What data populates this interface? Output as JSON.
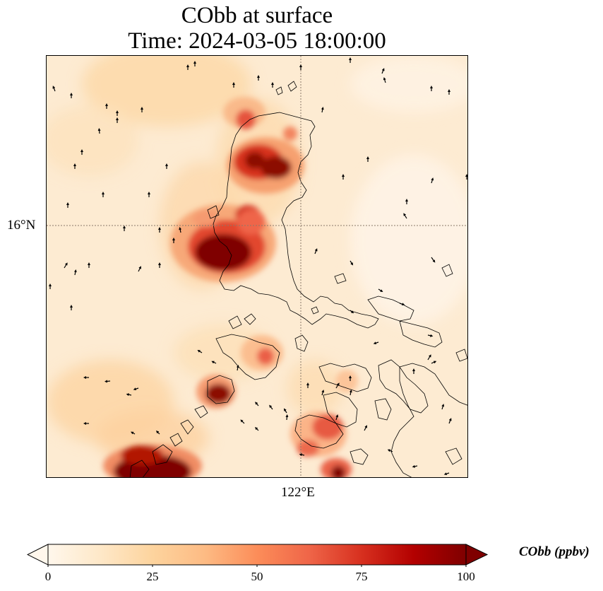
{
  "title": {
    "line1": "CObb at surface",
    "line2": "Time: 2024-03-05 18:00:00"
  },
  "map": {
    "gridline_lat_label": "16°N",
    "gridline_lon_label": "122°E",
    "has_coastlines": true,
    "has_wind_arrows": true,
    "gridlines": "dotted"
  },
  "colorbar": {
    "label": "CObb (ppbv)",
    "ticks": [
      "0",
      "25",
      "50",
      "75",
      "100"
    ],
    "min": 0,
    "max": 100,
    "extend": "both",
    "colormap": "OrRd",
    "colors": [
      "#fff7ec",
      "#fee8c8",
      "#fdd49e",
      "#fdbb84",
      "#fc8d59",
      "#ef6548",
      "#d7301f",
      "#b30000",
      "#7f0000"
    ]
  }
}
